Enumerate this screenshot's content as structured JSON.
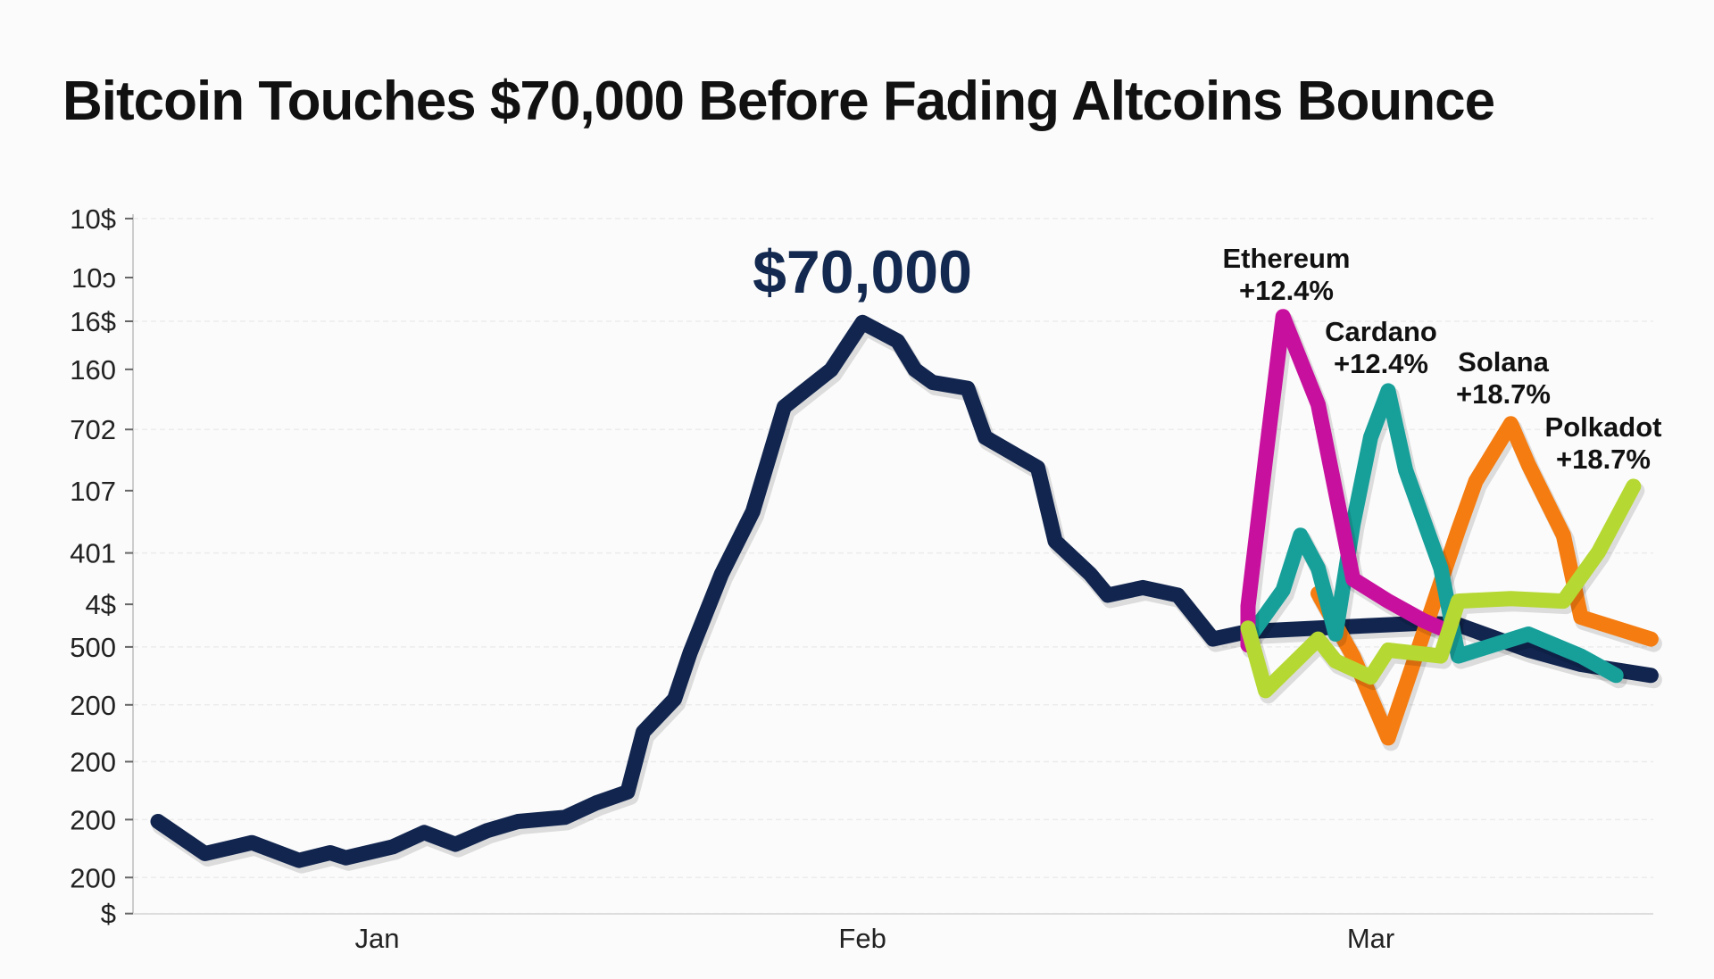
{
  "chart_data": {
    "type": "line",
    "title": "Bitcoin Touches $70,000 Before Fading Altcoins Bounce",
    "xlabel": "",
    "ylabel": "",
    "x_tick_labels": [
      "Jan",
      "Feb",
      "Mar"
    ],
    "y_tick_labels": [
      "10$",
      "10ɔ",
      "16$",
      "160",
      "702",
      "107",
      "401",
      "4$",
      "500",
      "200",
      "200",
      "200",
      "200",
      "$"
    ],
    "ylim": [
      0,
      82300
    ],
    "grid": true,
    "legend": "none",
    "annotation": "$70,000",
    "series": [
      {
        "name": "Bitcoin",
        "color": "#11254f",
        "points": [
          [
            "Dec 18",
            10900
          ],
          [
            "Dec 21",
            7100
          ],
          [
            "Dec 24",
            8400
          ],
          [
            "Dec 27",
            6300
          ],
          [
            "Dec 29",
            7200
          ],
          [
            "Dec 30",
            6600
          ],
          [
            "Jan 2",
            7900
          ],
          [
            "Jan 4",
            9600
          ],
          [
            "Jan 6",
            8200
          ],
          [
            "Jan 8",
            9800
          ],
          [
            "Jan 10",
            10900
          ],
          [
            "Jan 13",
            11400
          ],
          [
            "Jan 15",
            13100
          ],
          [
            "Jan 17",
            14400
          ],
          [
            "Jan 18",
            21500
          ],
          [
            "Jan 20",
            25400
          ],
          [
            "Jan 21",
            30900
          ],
          [
            "Jan 23",
            40200
          ],
          [
            "Jan 25",
            47600
          ],
          [
            "Jan 27",
            60000
          ],
          [
            "Jan 30",
            64400
          ],
          [
            "Feb 1",
            70000
          ],
          [
            "Feb 3",
            67800
          ],
          [
            "Feb 4",
            64400
          ],
          [
            "Feb 5",
            62900
          ],
          [
            "Feb 7",
            62200
          ],
          [
            "Feb 8",
            56400
          ],
          [
            "Feb 11",
            52800
          ],
          [
            "Feb 12",
            44100
          ],
          [
            "Feb 14",
            40200
          ],
          [
            "Feb 15",
            37700
          ],
          [
            "Feb 17",
            38600
          ],
          [
            "Feb 19",
            37700
          ],
          [
            "Feb 21",
            32500
          ],
          [
            "Feb 23",
            33400
          ],
          [
            "Feb 27",
            33800
          ],
          [
            "Mar 4",
            34400
          ],
          [
            "Mar 6",
            34200
          ],
          [
            "Mar 10",
            31200
          ],
          [
            "Mar 13",
            29500
          ],
          [
            "Mar 17",
            28200
          ]
        ]
      },
      {
        "name": "Ethereum",
        "label": "+12.4%",
        "color": "#c8109e",
        "points": [
          [
            "Feb 23",
            31800
          ],
          [
            "Feb 23",
            36400
          ],
          [
            "Feb 24",
            53800
          ],
          [
            "Feb 25",
            70700
          ],
          [
            "Feb 27",
            60300
          ],
          [
            "Feb 29",
            39600
          ],
          [
            "Mar 2",
            37000
          ],
          [
            "Mar 4",
            34700
          ],
          [
            "Mar 5",
            33800
          ]
        ]
      },
      {
        "name": "Cardano",
        "label": "+12.4%",
        "color": "#17a09a",
        "points": [
          [
            "Feb 23",
            32500
          ],
          [
            "Feb 25",
            38300
          ],
          [
            "Feb 26",
            44800
          ],
          [
            "Feb 27",
            40900
          ],
          [
            "Feb 28",
            33100
          ],
          [
            "Feb 29",
            46100
          ],
          [
            "Mar 1",
            56400
          ],
          [
            "Mar 2",
            61900
          ],
          [
            "Mar 3",
            52500
          ],
          [
            "Mar 5",
            40900
          ],
          [
            "Mar 6",
            30500
          ],
          [
            "Mar 8",
            31800
          ],
          [
            "Mar 10",
            33100
          ],
          [
            "Mar 13",
            30500
          ],
          [
            "Mar 15",
            28200
          ]
        ]
      },
      {
        "name": "Solana",
        "label": "+18.7%",
        "color": "#f57c10",
        "points": [
          [
            "Feb 27",
            37900
          ],
          [
            "Feb 29",
            30500
          ],
          [
            "Mar 2",
            20800
          ],
          [
            "Mar 4",
            33100
          ],
          [
            "Mar 6",
            45400
          ],
          [
            "Mar 7",
            51200
          ],
          [
            "Mar 9",
            58000
          ],
          [
            "Mar 10",
            53200
          ],
          [
            "Mar 12",
            44800
          ],
          [
            "Mar 13",
            35100
          ],
          [
            "Mar 15",
            33800
          ],
          [
            "Mar 17",
            32500
          ]
        ]
      },
      {
        "name": "Polkadot",
        "label": "+18.7%",
        "color": "#b5d832",
        "points": [
          [
            "Feb 23",
            33800
          ],
          [
            "Feb 24",
            26400
          ],
          [
            "Feb 27",
            32500
          ],
          [
            "Feb 28",
            29900
          ],
          [
            "Mar 1",
            28000
          ],
          [
            "Mar 2",
            31200
          ],
          [
            "Mar 5",
            30500
          ],
          [
            "Mar 6",
            37000
          ],
          [
            "Mar 9",
            37300
          ],
          [
            "Mar 12",
            37000
          ],
          [
            "Mar 14",
            42800
          ],
          [
            "Mar 16",
            50600
          ]
        ]
      }
    ]
  }
}
